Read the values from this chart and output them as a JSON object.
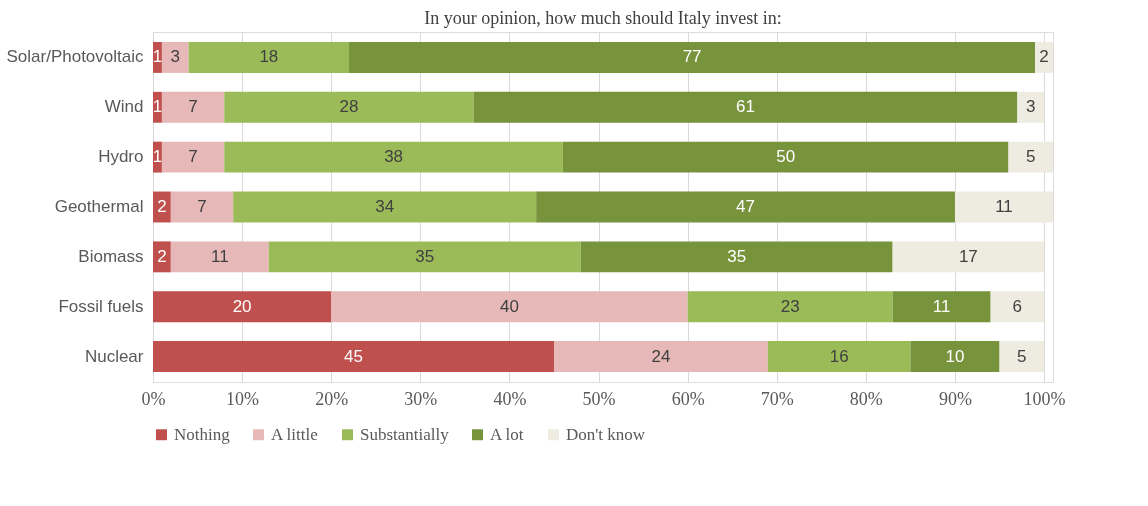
{
  "chart_data": {
    "type": "bar",
    "orientation": "horizontal",
    "stacked": true,
    "title": "In your opinion, how much should Italy invest in:",
    "categories": [
      "Solar/Photovoltaic",
      "Wind",
      "Hydro",
      "Geothermal",
      "Biomass",
      "Fossil fuels",
      "Nuclear"
    ],
    "series": [
      {
        "name": "Nothing",
        "color": "#c0504d",
        "values": [
          1,
          1,
          1,
          2,
          2,
          20,
          45
        ]
      },
      {
        "name": "A little",
        "color": "#e6b9b8",
        "values": [
          3,
          7,
          7,
          7,
          11,
          40,
          24
        ]
      },
      {
        "name": "Substantially",
        "color": "#9bbb59",
        "values": [
          18,
          28,
          38,
          34,
          35,
          23,
          16
        ]
      },
      {
        "name": "A lot",
        "color": "#77933c",
        "values": [
          77,
          61,
          50,
          47,
          35,
          11,
          10
        ]
      },
      {
        "name": "Don't know",
        "color": "#eeece1",
        "values": [
          2,
          3,
          5,
          11,
          17,
          6,
          5
        ]
      }
    ],
    "xlim": [
      0,
      101
    ],
    "xticks": [
      {
        "value": 0,
        "label": "0%"
      },
      {
        "value": 10,
        "label": "10%"
      },
      {
        "value": 20,
        "label": "20%"
      },
      {
        "value": 30,
        "label": "30%"
      },
      {
        "value": 40,
        "label": "40%"
      },
      {
        "value": 50,
        "label": "50%"
      },
      {
        "value": 60,
        "label": "60%"
      },
      {
        "value": 70,
        "label": "70%"
      },
      {
        "value": 80,
        "label": "80%"
      },
      {
        "value": 90,
        "label": "90%"
      },
      {
        "value": 100,
        "label": "100%"
      }
    ],
    "data_labels": true,
    "grid": "x",
    "legend": "bottom"
  }
}
